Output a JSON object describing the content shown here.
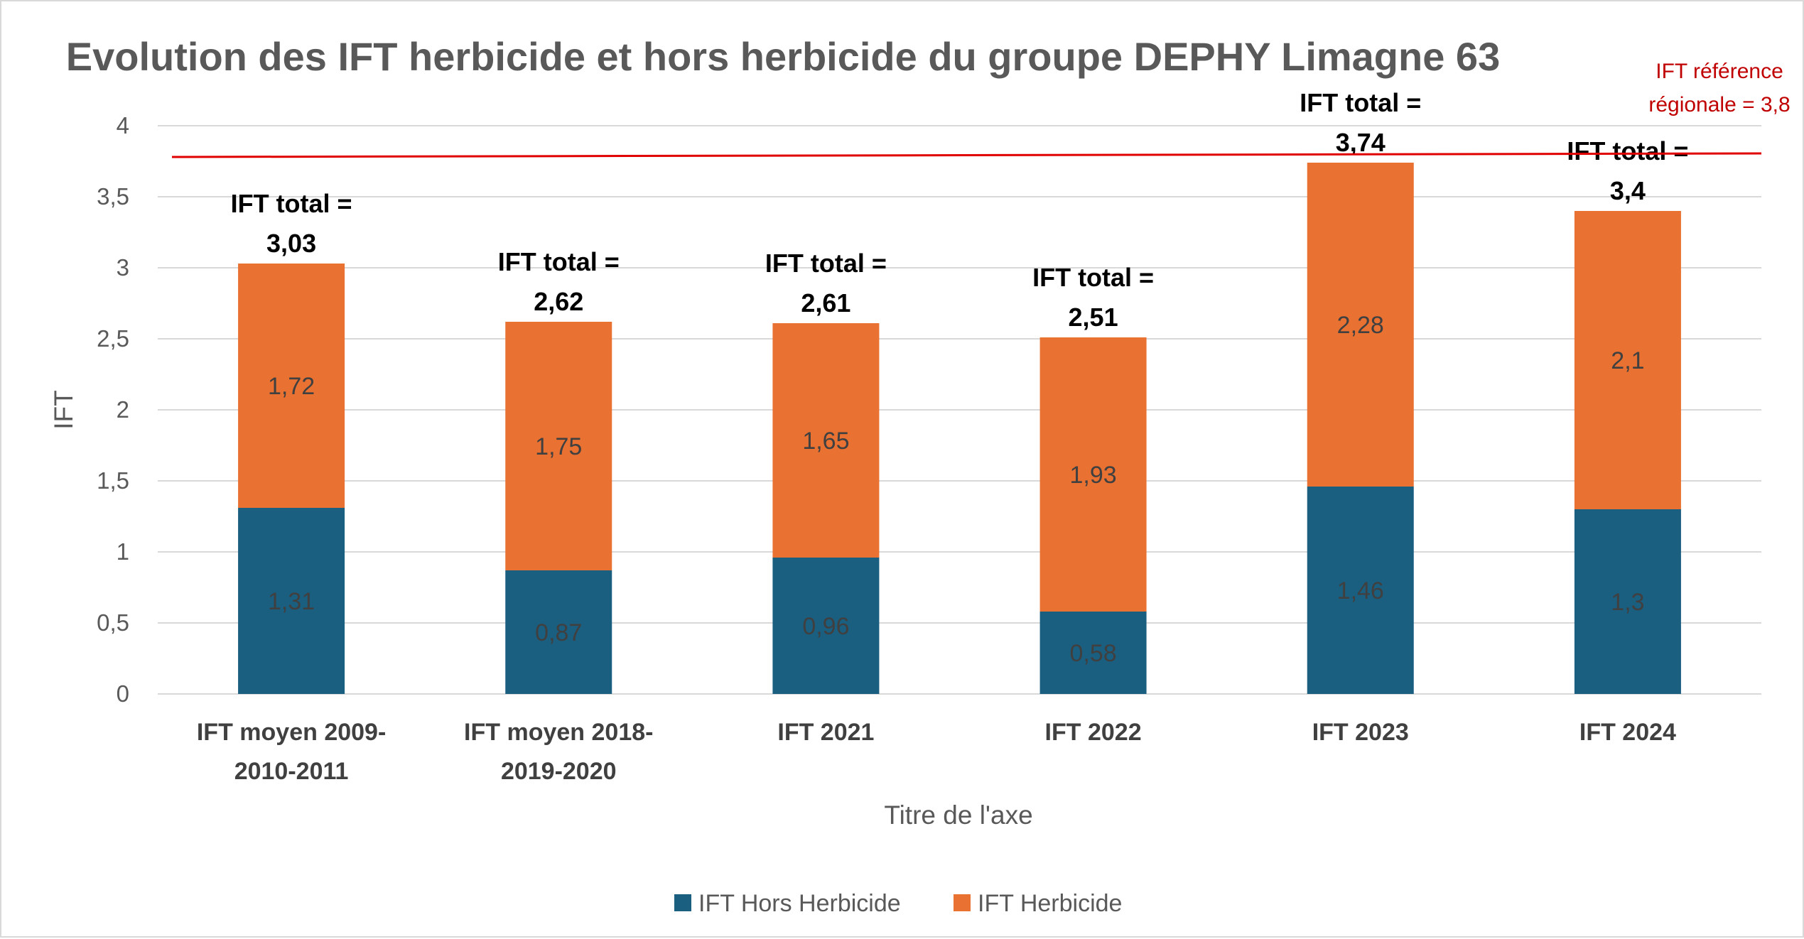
{
  "chart_data": {
    "type": "bar",
    "stacked": true,
    "title": "Evolution des IFT herbicide et hors herbicide du groupe DEPHY Limagne 63",
    "xlabel": "Titre de l'axe",
    "ylabel": "IFT",
    "ylim": [
      0,
      4
    ],
    "yticks": [
      "0",
      "0,5",
      "1",
      "1,5",
      "2",
      "2,5",
      "3",
      "3,5",
      "4"
    ],
    "grid": true,
    "legend_position": "bottom",
    "categories": [
      [
        "IFT moyen 2009-",
        "2010-2011"
      ],
      [
        "IFT moyen 2018-",
        "2019-2020"
      ],
      [
        "IFT 2021"
      ],
      [
        "IFT 2022"
      ],
      [
        "IFT 2023"
      ],
      [
        "IFT 2024"
      ]
    ],
    "series": [
      {
        "name": "IFT Hors Herbicide",
        "color": "#1a5e80",
        "values": [
          1.31,
          0.87,
          0.96,
          0.58,
          1.46,
          1.3
        ],
        "labels": [
          "1,31",
          "0,87",
          "0,96",
          "0,58",
          "1,46",
          "1,3"
        ]
      },
      {
        "name": "IFT Herbicide",
        "color": "#e97132",
        "values": [
          1.72,
          1.75,
          1.65,
          1.93,
          2.28,
          2.1
        ],
        "labels": [
          "1,72",
          "1,75",
          "1,65",
          "1,93",
          "2,28",
          "2,1"
        ]
      }
    ],
    "totals": {
      "prefix": "IFT total =",
      "values": [
        "3,03",
        "2,62",
        "2,61",
        "2,51",
        "3,74",
        "3,4"
      ]
    },
    "reference_line": {
      "value": 3.8,
      "color": "#e00000",
      "label_lines": [
        "IFT référence",
        "régionale = 3,8"
      ]
    },
    "gridline_color": "#d9d9d9"
  }
}
